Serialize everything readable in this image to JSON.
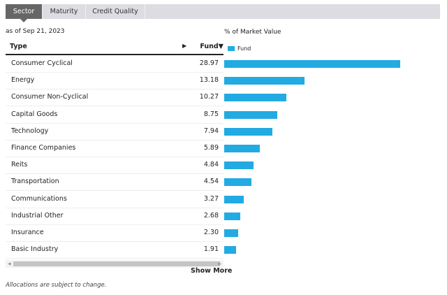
{
  "tabs": [
    {
      "label": "Sector",
      "active": true
    },
    {
      "label": "Maturity"
    },
    {
      "label": "Credit Quality"
    }
  ],
  "as_of": "as of Sep 21, 2023",
  "columns": {
    "type": "Type",
    "expand": "▶",
    "fund": "Fund▼"
  },
  "chart_title": "% of Market Value",
  "legend": "Fund",
  "colors": {
    "bar": "#22aae2",
    "active_tab": "#666666"
  },
  "chart_data": {
    "type": "bar",
    "orientation": "horizontal",
    "title": "% of Market Value",
    "categories": [
      "Consumer Cyclical",
      "Energy",
      "Consumer Non-Cyclical",
      "Capital Goods",
      "Technology",
      "Finance Companies",
      "Reits",
      "Transportation",
      "Communications",
      "Industrial Other",
      "Insurance",
      "Basic Industry"
    ],
    "series": [
      {
        "name": "Fund",
        "values": [
          "28.97",
          "13.18",
          "10.27",
          "8.75",
          "7.94",
          "5.89",
          "4.84",
          "4.54",
          "3.27",
          "2.68",
          "2.30",
          "1.91"
        ]
      }
    ]
  },
  "show_more": "Show More",
  "note": "Allocations are subject to change."
}
